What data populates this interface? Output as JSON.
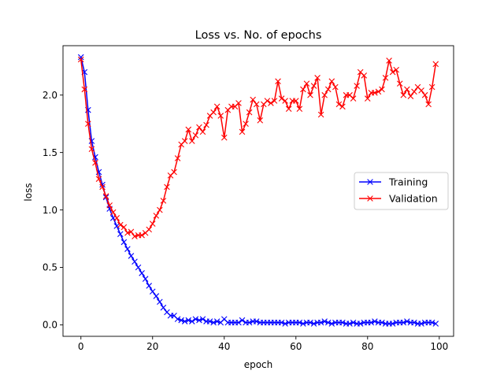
{
  "chart_data": {
    "type": "line",
    "title": "Loss vs. No. of epochs",
    "xlabel": "epoch",
    "ylabel": "loss",
    "xlim": [
      -5,
      104
    ],
    "ylim": [
      -0.1,
      2.43
    ],
    "xticks": [
      0,
      20,
      40,
      60,
      80,
      100
    ],
    "yticks": [
      0.0,
      0.5,
      1.0,
      1.5,
      2.0
    ],
    "xtick_labels": [
      "0",
      "20",
      "40",
      "60",
      "80",
      "100"
    ],
    "ytick_labels": [
      "0.0",
      "0.5",
      "1.0",
      "1.5",
      "2.0"
    ],
    "grid": false,
    "legend_position": "center-right",
    "marker": "x",
    "series": [
      {
        "name": "Training",
        "color": "#0000ff",
        "x": [
          0,
          1,
          2,
          3,
          4,
          5,
          6,
          7,
          8,
          9,
          10,
          11,
          12,
          13,
          14,
          15,
          16,
          17,
          18,
          19,
          20,
          21,
          22,
          23,
          24,
          25,
          26,
          27,
          28,
          29,
          30,
          31,
          32,
          33,
          34,
          35,
          36,
          37,
          38,
          39,
          40,
          41,
          42,
          43,
          44,
          45,
          46,
          47,
          48,
          49,
          50,
          51,
          52,
          53,
          54,
          55,
          56,
          57,
          58,
          59,
          60,
          61,
          62,
          63,
          64,
          65,
          66,
          67,
          68,
          69,
          70,
          71,
          72,
          73,
          74,
          75,
          76,
          77,
          78,
          79,
          80,
          81,
          82,
          83,
          84,
          85,
          86,
          87,
          88,
          89,
          90,
          91,
          92,
          93,
          94,
          95,
          96,
          97,
          98,
          99
        ],
        "values": [
          2.33,
          2.2,
          1.87,
          1.6,
          1.46,
          1.33,
          1.22,
          1.11,
          1.01,
          0.93,
          0.86,
          0.79,
          0.72,
          0.66,
          0.6,
          0.55,
          0.5,
          0.45,
          0.4,
          0.34,
          0.29,
          0.25,
          0.2,
          0.15,
          0.11,
          0.08,
          0.08,
          0.05,
          0.04,
          0.03,
          0.04,
          0.03,
          0.05,
          0.04,
          0.05,
          0.03,
          0.03,
          0.02,
          0.03,
          0.02,
          0.05,
          0.02,
          0.02,
          0.02,
          0.02,
          0.04,
          0.02,
          0.02,
          0.03,
          0.03,
          0.02,
          0.02,
          0.02,
          0.02,
          0.02,
          0.02,
          0.02,
          0.01,
          0.02,
          0.02,
          0.02,
          0.02,
          0.01,
          0.02,
          0.02,
          0.01,
          0.02,
          0.02,
          0.03,
          0.02,
          0.01,
          0.02,
          0.02,
          0.02,
          0.01,
          0.01,
          0.02,
          0.01,
          0.01,
          0.02,
          0.02,
          0.02,
          0.03,
          0.02,
          0.02,
          0.01,
          0.01,
          0.01,
          0.02,
          0.02,
          0.02,
          0.03,
          0.02,
          0.02,
          0.01,
          0.01,
          0.02,
          0.02,
          0.02,
          0.01
        ]
      },
      {
        "name": "Validation",
        "color": "#ff0000",
        "x": [
          0,
          1,
          2,
          3,
          4,
          5,
          6,
          7,
          8,
          9,
          10,
          11,
          12,
          13,
          14,
          15,
          16,
          17,
          18,
          19,
          20,
          21,
          22,
          23,
          24,
          25,
          26,
          27,
          28,
          29,
          30,
          31,
          32,
          33,
          34,
          35,
          36,
          37,
          38,
          39,
          40,
          41,
          42,
          43,
          44,
          45,
          46,
          47,
          48,
          49,
          50,
          51,
          52,
          53,
          54,
          55,
          56,
          57,
          58,
          59,
          60,
          61,
          62,
          63,
          64,
          65,
          66,
          67,
          68,
          69,
          70,
          71,
          72,
          73,
          74,
          75,
          76,
          77,
          78,
          79,
          80,
          81,
          82,
          83,
          84,
          85,
          86,
          87,
          88,
          89,
          90,
          91,
          92,
          93,
          94,
          95,
          96,
          97,
          98,
          99
        ],
        "values": [
          2.31,
          2.05,
          1.75,
          1.53,
          1.41,
          1.27,
          1.2,
          1.12,
          1.04,
          0.98,
          0.93,
          0.87,
          0.85,
          0.8,
          0.81,
          0.77,
          0.78,
          0.78,
          0.8,
          0.83,
          0.88,
          0.95,
          1.0,
          1.08,
          1.2,
          1.3,
          1.33,
          1.45,
          1.57,
          1.6,
          1.7,
          1.6,
          1.65,
          1.72,
          1.68,
          1.74,
          1.82,
          1.85,
          1.9,
          1.82,
          1.63,
          1.87,
          1.9,
          1.9,
          1.93,
          1.68,
          1.75,
          1.85,
          1.96,
          1.92,
          1.78,
          1.92,
          1.95,
          1.93,
          1.95,
          2.12,
          1.97,
          1.95,
          1.88,
          1.95,
          1.95,
          1.88,
          2.05,
          2.1,
          2.0,
          2.08,
          2.15,
          1.83,
          2.0,
          2.05,
          2.12,
          2.07,
          1.92,
          1.9,
          2.0,
          2.0,
          1.97,
          2.08,
          2.2,
          2.17,
          1.97,
          2.02,
          2.02,
          2.03,
          2.05,
          2.15,
          2.3,
          2.2,
          2.22,
          2.1,
          2.0,
          2.05,
          1.99,
          2.03,
          2.07,
          2.04,
          2.0,
          1.92,
          2.07,
          2.27
        ]
      }
    ]
  }
}
